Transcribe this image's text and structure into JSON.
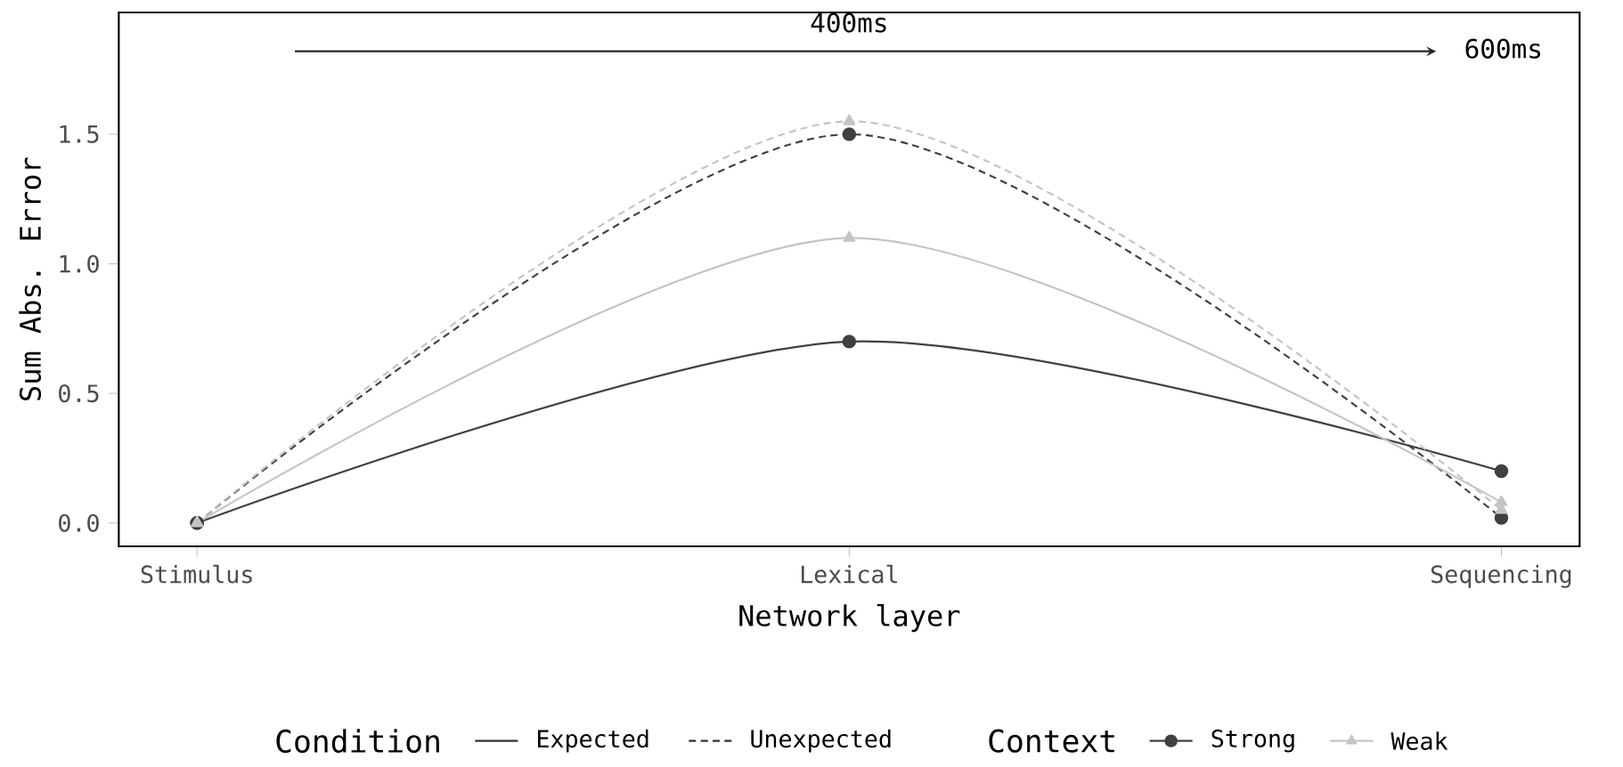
{
  "chart_data": {
    "type": "line",
    "xlabel": "Network layer",
    "ylabel": "Sum Abs. Error",
    "categories": [
      "Stimulus",
      "Lexical",
      "Sequencing"
    ],
    "ylim": [
      -0.09,
      1.97
    ],
    "yticks": [
      {
        "value": 0,
        "label": "0.0"
      },
      {
        "value": 0.5,
        "label": "0.5"
      },
      {
        "value": 1,
        "label": "1.0"
      },
      {
        "value": 1.5,
        "label": "1.5"
      }
    ],
    "series": [
      {
        "color": "#404040",
        "line_style": "solid",
        "marker": "circle",
        "values": [
          0,
          0.7,
          0.2
        ]
      },
      {
        "color": "#404040",
        "line_style": "dashed",
        "marker": "circle",
        "values": [
          0,
          1.5,
          0.02
        ]
      },
      {
        "color": "#c4c4c4",
        "line_style": "solid",
        "marker": "triangle",
        "values": [
          0,
          1.1,
          0.08
        ]
      },
      {
        "color": "#c4c4c4",
        "line_style": "dashed",
        "marker": "triangle",
        "values": [
          0,
          1.55,
          0.05
        ]
      }
    ],
    "annotations": [
      "400ms",
      "600ms",
      "Condition",
      "Expected",
      "Unexpected",
      "Context",
      "Strong",
      "Weak"
    ],
    "grid": false
  }
}
